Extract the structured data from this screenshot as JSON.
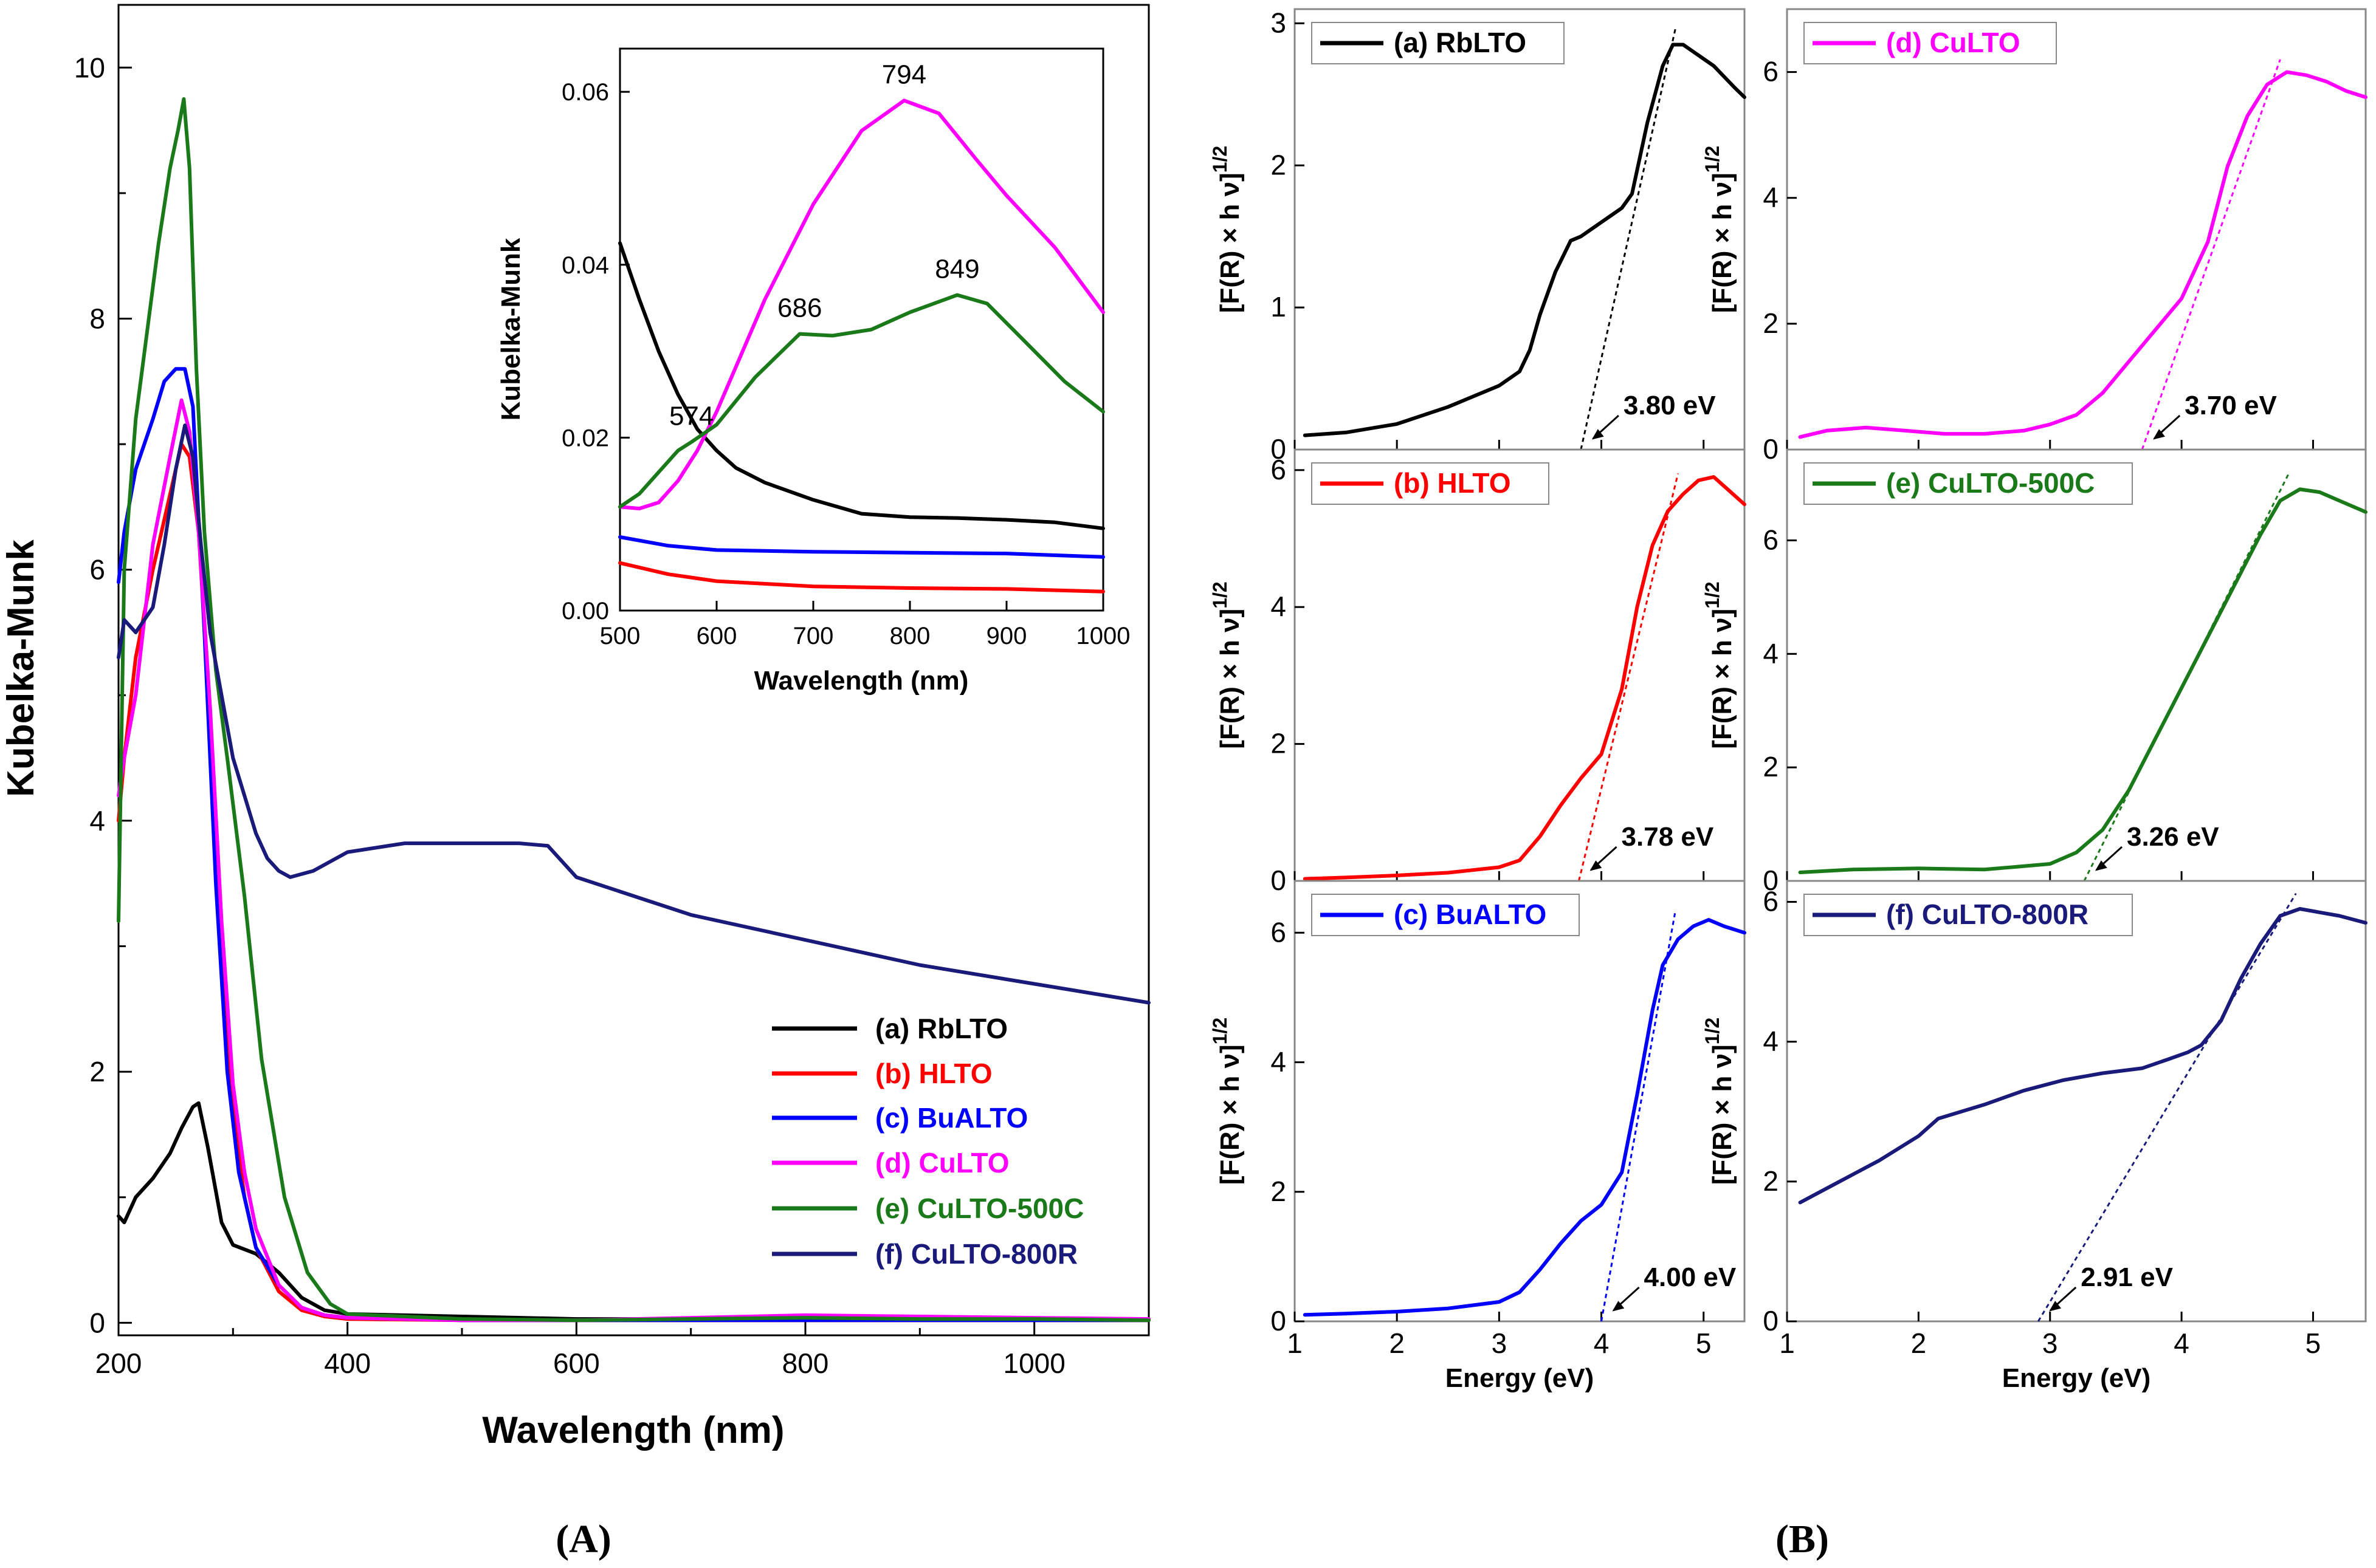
{
  "colors": {
    "a": "#000000",
    "b": "#ff0000",
    "c": "#0000ff",
    "d": "#ff00ff",
    "e": "#1a7a1a",
    "f": "#1a1a7a"
  },
  "panel_labels": {
    "A": "(A)",
    "B": "(B)"
  },
  "chart_data": [
    {
      "id": "A-main",
      "type": "line",
      "xlabel": "Wavelength (nm)",
      "ylabel": "Kubelka-Munk",
      "xlim": [
        200,
        1100
      ],
      "ylim": [
        -0.1,
        10.5
      ],
      "xticks": [
        200,
        400,
        600,
        800,
        1000
      ],
      "yticks": [
        0,
        2,
        4,
        6,
        8,
        10
      ],
      "legend_position": "lower-right",
      "series": [
        {
          "key": "a",
          "name": "(a) RbLTO",
          "x": [
            200,
            205,
            215,
            230,
            245,
            255,
            265,
            270,
            278,
            290,
            300,
            320,
            340,
            360,
            380,
            400,
            500,
            600,
            700,
            800,
            900,
            1000,
            1100
          ],
          "y": [
            0.85,
            0.8,
            1.0,
            1.15,
            1.35,
            1.55,
            1.72,
            1.75,
            1.4,
            0.8,
            0.62,
            0.55,
            0.4,
            0.2,
            0.1,
            0.07,
            0.05,
            0.03,
            0.03,
            0.03,
            0.03,
            0.03,
            0.03
          ]
        },
        {
          "key": "b",
          "name": "(b) HLTO",
          "x": [
            200,
            205,
            215,
            230,
            245,
            255,
            262,
            270,
            280,
            290,
            300,
            310,
            320,
            340,
            360,
            380,
            400,
            500,
            600,
            700,
            800,
            900,
            1000,
            1100
          ],
          "y": [
            4.0,
            4.5,
            5.3,
            6.0,
            6.6,
            7.0,
            6.9,
            6.3,
            4.8,
            3.0,
            1.7,
            1.0,
            0.6,
            0.25,
            0.1,
            0.05,
            0.03,
            0.02,
            0.02,
            0.02,
            0.02,
            0.02,
            0.02,
            0.02
          ]
        },
        {
          "key": "c",
          "name": "(c) BuALTO",
          "x": [
            200,
            205,
            215,
            230,
            240,
            250,
            258,
            265,
            275,
            285,
            295,
            305,
            320,
            340,
            360,
            380,
            400,
            500,
            600,
            700,
            800,
            900,
            1000,
            1100
          ],
          "y": [
            5.9,
            6.3,
            6.8,
            7.2,
            7.5,
            7.6,
            7.6,
            7.3,
            5.5,
            3.5,
            2.0,
            1.2,
            0.6,
            0.3,
            0.12,
            0.06,
            0.04,
            0.02,
            0.02,
            0.02,
            0.02,
            0.02,
            0.02,
            0.02
          ]
        },
        {
          "key": "d",
          "name": "(d) CuLTO",
          "x": [
            200,
            205,
            215,
            230,
            245,
            255,
            262,
            270,
            280,
            290,
            300,
            310,
            320,
            340,
            360,
            380,
            400,
            500,
            600,
            700,
            800,
            900,
            1000,
            1100
          ],
          "y": [
            4.2,
            4.5,
            5.0,
            6.2,
            6.9,
            7.35,
            7.1,
            6.3,
            4.9,
            3.2,
            1.9,
            1.2,
            0.75,
            0.3,
            0.12,
            0.06,
            0.04,
            0.02,
            0.02,
            0.04,
            0.06,
            0.05,
            0.04,
            0.03
          ]
        },
        {
          "key": "e",
          "name": "(e) CuLTO-500C",
          "x": [
            200,
            205,
            215,
            225,
            235,
            245,
            252,
            257,
            262,
            268,
            275,
            285,
            295,
            310,
            325,
            345,
            365,
            385,
            400,
            500,
            600,
            700,
            800,
            900,
            1000,
            1100
          ],
          "y": [
            3.2,
            6.0,
            7.2,
            7.9,
            8.6,
            9.2,
            9.5,
            9.75,
            9.2,
            7.6,
            6.3,
            5.2,
            4.5,
            3.4,
            2.1,
            1.0,
            0.4,
            0.15,
            0.07,
            0.03,
            0.02,
            0.03,
            0.04,
            0.03,
            0.03,
            0.02
          ]
        },
        {
          "key": "f",
          "name": "(f) CuLTO-800R",
          "x": [
            200,
            205,
            215,
            230,
            240,
            250,
            258,
            265,
            272,
            280,
            290,
            300,
            310,
            320,
            330,
            340,
            350,
            370,
            400,
            450,
            500,
            550,
            575,
            600,
            700,
            800,
            900,
            1000,
            1100
          ],
          "y": [
            5.3,
            5.6,
            5.5,
            5.7,
            6.2,
            6.8,
            7.15,
            6.9,
            6.2,
            5.5,
            5.0,
            4.5,
            4.2,
            3.9,
            3.7,
            3.6,
            3.55,
            3.6,
            3.75,
            3.82,
            3.82,
            3.82,
            3.8,
            3.55,
            3.25,
            3.05,
            2.85,
            2.7,
            2.55
          ]
        }
      ]
    },
    {
      "id": "A-inset",
      "type": "line",
      "xlabel": "Wavelength (nm)",
      "ylabel": "Kubelka-Munk",
      "xlim": [
        500,
        1000
      ],
      "ylim": [
        0,
        0.065
      ],
      "xticks": [
        500,
        600,
        700,
        800,
        900,
        1000
      ],
      "yticks": [
        0.0,
        0.02,
        0.04,
        0.06
      ],
      "ytick_labels": [
        "0.00",
        "0.02",
        "0.04",
        "0.06"
      ],
      "annotations": [
        {
          "text": "794",
          "x": 794,
          "y": 0.059
        },
        {
          "text": "849",
          "x": 849,
          "y": 0.0365
        },
        {
          "text": "686",
          "x": 686,
          "y": 0.032
        },
        {
          "text": "574",
          "x": 574,
          "y": 0.0195
        }
      ],
      "series": [
        {
          "key": "a",
          "name": "(a) RbLTO",
          "x": [
            500,
            520,
            540,
            560,
            580,
            600,
            620,
            650,
            700,
            750,
            800,
            850,
            900,
            950,
            1000
          ],
          "y": [
            0.0425,
            0.036,
            0.03,
            0.025,
            0.021,
            0.0185,
            0.0165,
            0.0148,
            0.0128,
            0.0112,
            0.0108,
            0.0107,
            0.0105,
            0.0102,
            0.0095
          ]
        },
        {
          "key": "b",
          "name": "(b) HLTO",
          "x": [
            500,
            550,
            600,
            700,
            800,
            900,
            1000
          ],
          "y": [
            0.0055,
            0.0042,
            0.0034,
            0.0028,
            0.0026,
            0.0025,
            0.0022
          ]
        },
        {
          "key": "c",
          "name": "(c) BuALTO",
          "x": [
            500,
            550,
            600,
            700,
            800,
            900,
            1000
          ],
          "y": [
            0.0085,
            0.0075,
            0.007,
            0.0068,
            0.0067,
            0.0066,
            0.0062
          ]
        },
        {
          "key": "d",
          "name": "(d) CuLTO",
          "x": [
            500,
            520,
            540,
            560,
            580,
            600,
            650,
            700,
            750,
            794,
            830,
            870,
            900,
            950,
            1000
          ],
          "y": [
            0.012,
            0.0118,
            0.0125,
            0.015,
            0.0185,
            0.023,
            0.036,
            0.047,
            0.0555,
            0.059,
            0.0575,
            0.052,
            0.048,
            0.042,
            0.0345
          ]
        },
        {
          "key": "e",
          "name": "(e) CuLTO-500C",
          "x": [
            500,
            520,
            540,
            560,
            574,
            600,
            640,
            686,
            720,
            760,
            800,
            849,
            880,
            920,
            960,
            1000
          ],
          "y": [
            0.012,
            0.0135,
            0.016,
            0.0185,
            0.0195,
            0.0215,
            0.027,
            0.032,
            0.0318,
            0.0325,
            0.0345,
            0.0365,
            0.0355,
            0.031,
            0.0265,
            0.023
          ]
        }
      ]
    },
    {
      "id": "B-a",
      "type": "line",
      "name": "(a) RbLTO",
      "key": "a",
      "xlabel": "",
      "ylabel": "[F(R) × h ν]1/2",
      "xlim": [
        1,
        5.4
      ],
      "ylim": [
        0,
        3.1
      ],
      "yticks": [
        0,
        1,
        2,
        3
      ],
      "band_gap": "3.80 eV",
      "eg": 3.8,
      "fit_end": [
        4.73,
        2.98
      ],
      "x": [
        1.1,
        1.5,
        2.0,
        2.5,
        3.0,
        3.2,
        3.3,
        3.4,
        3.55,
        3.7,
        3.8,
        3.9,
        4.0,
        4.1,
        4.2,
        4.3,
        4.45,
        4.6,
        4.7,
        4.8,
        4.9,
        5.1,
        5.3,
        5.4
      ],
      "y": [
        0.1,
        0.12,
        0.18,
        0.3,
        0.45,
        0.55,
        0.7,
        0.95,
        1.25,
        1.47,
        1.5,
        1.55,
        1.6,
        1.65,
        1.7,
        1.8,
        2.3,
        2.7,
        2.85,
        2.85,
        2.8,
        2.7,
        2.55,
        2.48
      ]
    },
    {
      "id": "B-b",
      "type": "line",
      "name": "(b) HLTO",
      "key": "b",
      "xlabel": "",
      "ylabel": "[F(R) × h ν]1/2",
      "xlim": [
        1,
        5.4
      ],
      "ylim": [
        0,
        6.3
      ],
      "yticks": [
        0,
        2,
        4,
        6
      ],
      "band_gap": "3.78 eV",
      "eg": 3.78,
      "fit_end": [
        4.75,
        5.95
      ],
      "x": [
        1.1,
        1.5,
        2.0,
        2.5,
        3.0,
        3.2,
        3.4,
        3.6,
        3.8,
        4.0,
        4.2,
        4.35,
        4.5,
        4.65,
        4.8,
        4.95,
        5.1,
        5.25,
        5.4
      ],
      "y": [
        0.03,
        0.05,
        0.08,
        0.12,
        0.2,
        0.3,
        0.65,
        1.1,
        1.5,
        1.85,
        2.8,
        4.0,
        4.9,
        5.4,
        5.65,
        5.85,
        5.9,
        5.7,
        5.5
      ]
    },
    {
      "id": "B-c",
      "type": "line",
      "name": "(c) BuALTO",
      "key": "c",
      "xlabel": "Energy (eV)",
      "ylabel": "[F(R) × h ν]1/2",
      "xlim": [
        1,
        5.4
      ],
      "ylim": [
        0,
        6.8
      ],
      "yticks": [
        0,
        2,
        4,
        6
      ],
      "xticks": [
        1,
        2,
        3,
        4,
        5
      ],
      "band_gap": "4.00 eV",
      "eg": 4.0,
      "fit_end": [
        4.72,
        6.3
      ],
      "x": [
        1.1,
        1.5,
        2.0,
        2.5,
        3.0,
        3.2,
        3.4,
        3.6,
        3.8,
        4.0,
        4.2,
        4.35,
        4.5,
        4.6,
        4.75,
        4.9,
        5.05,
        5.2,
        5.4
      ],
      "y": [
        0.1,
        0.12,
        0.15,
        0.2,
        0.3,
        0.45,
        0.8,
        1.2,
        1.55,
        1.8,
        2.3,
        3.5,
        4.8,
        5.5,
        5.9,
        6.1,
        6.2,
        6.1,
        6.0
      ]
    },
    {
      "id": "B-d",
      "type": "line",
      "name": "(d) CuLTO",
      "key": "d",
      "xlabel": "",
      "ylabel": "[F(R) × h ν]1/2",
      "xlim": [
        1,
        5.4
      ],
      "ylim": [
        0,
        7
      ],
      "yticks": [
        0,
        2,
        4,
        6
      ],
      "band_gap": "3.70 eV",
      "eg": 3.7,
      "fit_end": [
        4.75,
        6.2
      ],
      "x": [
        1.1,
        1.3,
        1.6,
        1.9,
        2.2,
        2.5,
        2.8,
        3.0,
        3.2,
        3.4,
        3.6,
        3.8,
        4.0,
        4.2,
        4.35,
        4.5,
        4.65,
        4.8,
        4.95,
        5.1,
        5.25,
        5.4
      ],
      "y": [
        0.2,
        0.3,
        0.35,
        0.3,
        0.25,
        0.25,
        0.3,
        0.4,
        0.55,
        0.9,
        1.4,
        1.9,
        2.4,
        3.3,
        4.5,
        5.3,
        5.8,
        6.0,
        5.95,
        5.85,
        5.7,
        5.6
      ]
    },
    {
      "id": "B-e",
      "type": "line",
      "name": "(e) CuLTO-500C",
      "key": "e",
      "xlabel": "",
      "ylabel": "[F(R) × h ν]1/2",
      "xlim": [
        1,
        5.4
      ],
      "ylim": [
        0,
        7.6
      ],
      "yticks": [
        0,
        2,
        4,
        6
      ],
      "band_gap": "3.26 eV",
      "eg": 3.26,
      "fit_end": [
        4.82,
        7.2
      ],
      "x": [
        1.1,
        1.5,
        2.0,
        2.5,
        3.0,
        3.2,
        3.4,
        3.6,
        3.8,
        4.0,
        4.2,
        4.4,
        4.6,
        4.75,
        4.9,
        5.05,
        5.2,
        5.4
      ],
      "y": [
        0.15,
        0.2,
        0.22,
        0.2,
        0.3,
        0.5,
        0.9,
        1.6,
        2.5,
        3.4,
        4.3,
        5.2,
        6.1,
        6.7,
        6.9,
        6.85,
        6.7,
        6.5
      ]
    },
    {
      "id": "B-f",
      "type": "line",
      "name": "(f) CuLTO-800R",
      "key": "f",
      "xlabel": "Energy (eV)",
      "ylabel": "[F(R) × h ν]1/2",
      "xlim": [
        1,
        5.4
      ],
      "ylim": [
        0,
        6.3
      ],
      "yticks": [
        0,
        2,
        4,
        6
      ],
      "xticks": [
        1,
        2,
        3,
        4,
        5
      ],
      "band_gap": "2.91 eV",
      "eg": 2.91,
      "fit_end": [
        4.87,
        6.12
      ],
      "x": [
        1.1,
        1.4,
        1.7,
        2.0,
        2.15,
        2.5,
        2.8,
        3.1,
        3.4,
        3.7,
        3.9,
        4.05,
        4.15,
        4.3,
        4.45,
        4.6,
        4.75,
        4.9,
        5.05,
        5.2,
        5.4
      ],
      "y": [
        1.7,
        2.0,
        2.3,
        2.65,
        2.9,
        3.1,
        3.3,
        3.45,
        3.55,
        3.62,
        3.75,
        3.85,
        3.95,
        4.3,
        4.9,
        5.4,
        5.8,
        5.9,
        5.85,
        5.8,
        5.7
      ]
    }
  ]
}
